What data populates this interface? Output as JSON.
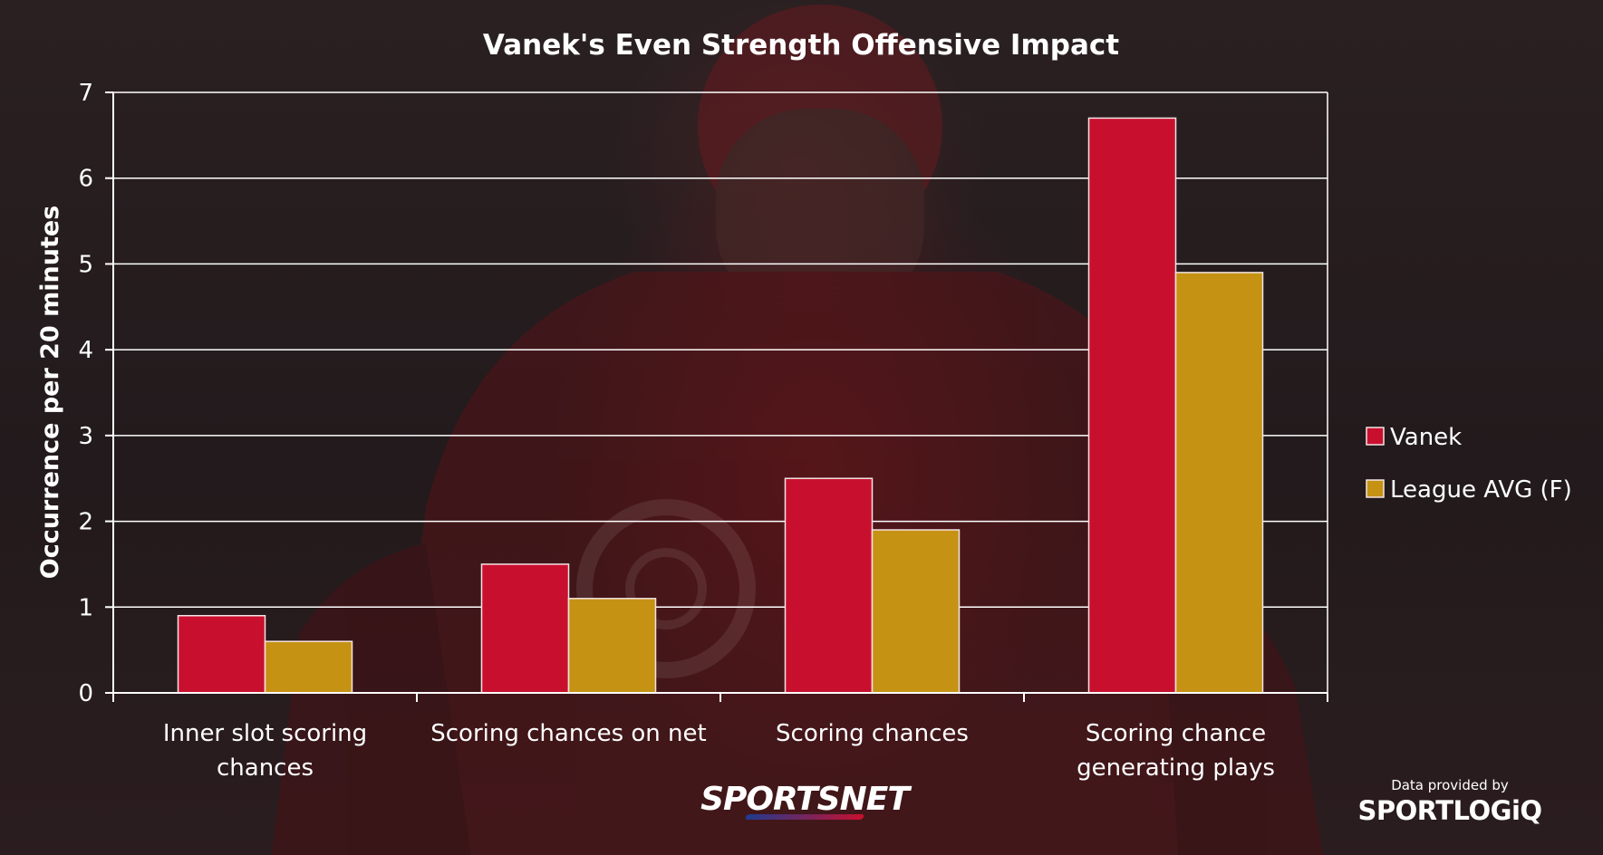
{
  "chart_data": {
    "type": "bar",
    "title": "Vanek's Even Strength Offensive Impact",
    "xlabel": "",
    "ylabel": "Occurrence per 20 minutes",
    "ylim": [
      0,
      7
    ],
    "yticks": [
      "0",
      "1",
      "2",
      "3",
      "4",
      "5",
      "6",
      "7"
    ],
    "grid": true,
    "legend_position": "right",
    "categories": [
      [
        "Inner slot scoring",
        "chances"
      ],
      [
        "Scoring chances on net"
      ],
      [
        "Scoring chances"
      ],
      [
        "Scoring chance",
        "generating plays"
      ]
    ],
    "series": [
      {
        "name": "Vanek",
        "color": "#c8102e",
        "values": [
          0.9,
          1.5,
          2.5,
          6.7
        ]
      },
      {
        "name": "League AVG (F)",
        "color": "#c69214",
        "values": [
          0.6,
          1.1,
          1.9,
          4.9
        ]
      }
    ]
  },
  "branding": {
    "network": "SPORTSNET",
    "credit_line": "Data provided by",
    "credit_brand": "SPORTLOGiQ"
  },
  "colors": {
    "background": "#221a1c",
    "grid": "#ffffff",
    "text": "#ffffff"
  }
}
